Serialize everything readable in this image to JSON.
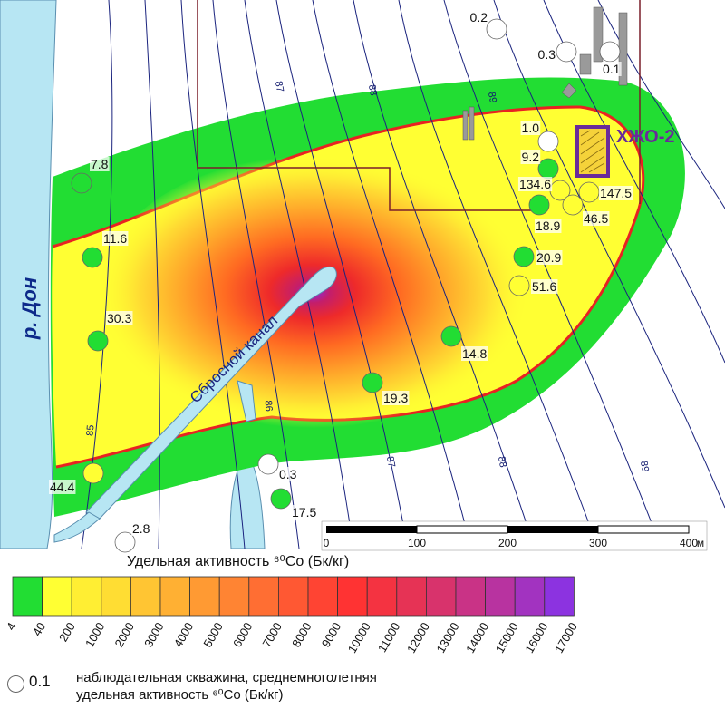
{
  "map": {
    "river_label": "р. Дон",
    "canal_label": "Сбросной канал",
    "facility_label": "ХЖО-2",
    "contour_labels": [
      "87",
      "88",
      "89",
      "86",
      "85",
      "87",
      "88",
      "89"
    ],
    "scale": {
      "ticks": [
        "0",
        "100",
        "200",
        "300",
        "400"
      ],
      "unit": "м"
    }
  },
  "wells": [
    {
      "value": "0.2",
      "color": "white"
    },
    {
      "value": "0.3",
      "color": "white"
    },
    {
      "value": "0.1",
      "color": "white"
    },
    {
      "value": "1.0",
      "color": "white"
    },
    {
      "value": "9.2",
      "color": "green"
    },
    {
      "value": "134.6",
      "color": "yellow"
    },
    {
      "value": "147.5",
      "color": "yellow"
    },
    {
      "value": "46.5",
      "color": "yellow"
    },
    {
      "value": "18.9",
      "color": "green"
    },
    {
      "value": "20.9",
      "color": "green"
    },
    {
      "value": "51.6",
      "color": "yellow"
    },
    {
      "value": "7.8",
      "color": "green"
    },
    {
      "value": "11.6",
      "color": "green"
    },
    {
      "value": "30.3",
      "color": "green"
    },
    {
      "value": "14.8",
      "color": "green"
    },
    {
      "value": "19.3",
      "color": "green"
    },
    {
      "value": "0.3",
      "color": "white"
    },
    {
      "value": "17.5",
      "color": "green"
    },
    {
      "value": "44.4",
      "color": "yellow"
    },
    {
      "value": "2.8",
      "color": "white"
    }
  ],
  "legend": {
    "title": "Удельная активность ⁶⁰Co (Бк/кг)",
    "ticks": [
      "4",
      "40",
      "200",
      "1000",
      "2000",
      "3000",
      "4000",
      "5000",
      "6000",
      "7000",
      "8000",
      "9000",
      "10000",
      "11000",
      "12000",
      "13000",
      "14000",
      "15000",
      "16000",
      "17000"
    ],
    "colors": [
      "#22dd33",
      "#ffff33",
      "#ffee33",
      "#ffdd33",
      "#ffc533",
      "#ffb033",
      "#ff9a33",
      "#ff8433",
      "#ff6e33",
      "#ff5833",
      "#ff4433",
      "#ff3333",
      "#f43341",
      "#e63355",
      "#d8336c",
      "#c93386",
      "#b833a0",
      "#a233c0",
      "#8c33e0"
    ],
    "note_value": "0.1",
    "note_line1": "наблюдательная скважина, среднемноголетняя",
    "note_line2": "удельная активность ⁶⁰Co (Бк/кг)"
  }
}
